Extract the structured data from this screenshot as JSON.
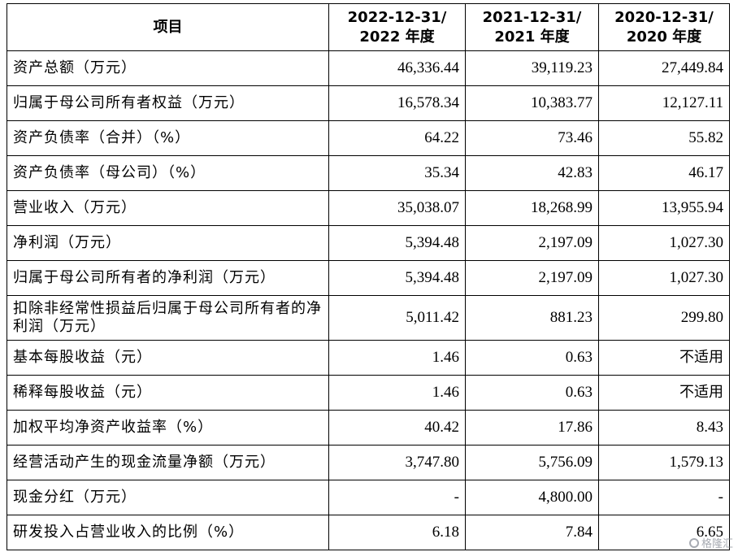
{
  "table": {
    "headers": [
      {
        "line1": "项目",
        "line2": ""
      },
      {
        "line1": "2022-12-31/",
        "line2": "2022 年度"
      },
      {
        "line1": "2021-12-31/",
        "line2": "2021 年度"
      },
      {
        "line1": "2020-12-31/",
        "line2": "2020 年度"
      }
    ],
    "rows": [
      {
        "label": "资产总额（万元）",
        "v2022": "46,336.44",
        "v2021": "39,119.23",
        "v2020": "27,449.84"
      },
      {
        "label": "归属于母公司所有者权益（万元）",
        "v2022": "16,578.34",
        "v2021": "10,383.77",
        "v2020": "12,127.11"
      },
      {
        "label": "资产负债率（合并）（%）",
        "v2022": "64.22",
        "v2021": "73.46",
        "v2020": "55.82"
      },
      {
        "label": "资产负债率（母公司）（%）",
        "v2022": "35.34",
        "v2021": "42.83",
        "v2020": "46.17"
      },
      {
        "label": "营业收入（万元）",
        "v2022": "35,038.07",
        "v2021": "18,268.99",
        "v2020": "13,955.94"
      },
      {
        "label": "净利润（万元）",
        "v2022": "5,394.48",
        "v2021": "2,197.09",
        "v2020": "1,027.30"
      },
      {
        "label": "归属于母公司所有者的净利润（万元）",
        "v2022": "5,394.48",
        "v2021": "2,197.09",
        "v2020": "1,027.30"
      },
      {
        "label": "扣除非经常性损益后归属于母公司所有者的净利润（万元）",
        "v2022": "5,011.42",
        "v2021": "881.23",
        "v2020": "299.80"
      },
      {
        "label": "基本每股收益（元）",
        "v2022": "1.46",
        "v2021": "0.63",
        "v2020": "不适用"
      },
      {
        "label": "稀释每股收益（元）",
        "v2022": "1.46",
        "v2021": "0.63",
        "v2020": "不适用"
      },
      {
        "label": "加权平均净资产收益率（%）",
        "v2022": "40.42",
        "v2021": "17.86",
        "v2020": "8.43"
      },
      {
        "label": "经营活动产生的现金流量净额（万元）",
        "v2022": "3,747.80",
        "v2021": "5,756.09",
        "v2020": "1,579.13"
      },
      {
        "label": "现金分红（万元）",
        "v2022": "-",
        "v2021": "4,800.00",
        "v2020": "-"
      },
      {
        "label": "研发投入占营业收入的比例（%）",
        "v2022": "6.18",
        "v2021": "7.84",
        "v2020": "6.65"
      }
    ]
  },
  "watermark": {
    "text": "格隆汇",
    "icon": "logo-icon"
  }
}
